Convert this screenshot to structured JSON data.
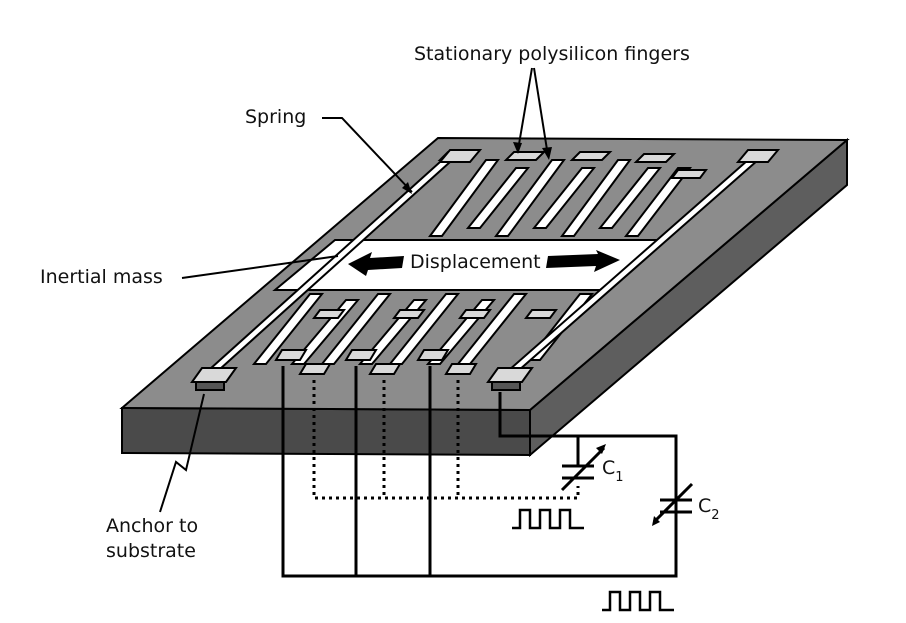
{
  "labels": {
    "stationary_fingers": "Stationary polysilicon fingers",
    "spring": "Spring",
    "inertial_mass": "Inertial mass",
    "displacement": "Displacement",
    "anchor_line1": "Anchor to",
    "anchor_line2": "substrate",
    "c1_main": "C",
    "c1_sub": "1",
    "c2_main": "C",
    "c2_sub": "2"
  },
  "colors": {
    "substrate_top": "#8c8c8c",
    "substrate_front": "#4a4a4a",
    "substrate_side": "#5e5e5e",
    "mass": "#ffffff",
    "fingers": "#ffffff",
    "anchor": "#d9d9d9",
    "ink": "#000000"
  }
}
